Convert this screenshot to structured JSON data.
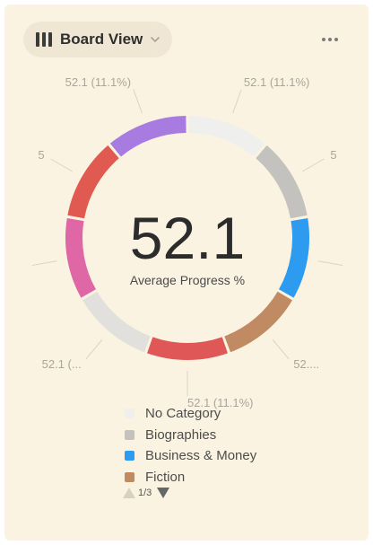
{
  "toolbar": {
    "view_label": "Board View",
    "view_icon": "board-columns-icon",
    "more_icon": "more-horizontal-icon"
  },
  "chart_data": {
    "type": "pie",
    "title": "",
    "center_value": "52.1",
    "center_label": "Average Progress %",
    "slices": [
      {
        "value": 52.1,
        "percent": 11.1,
        "color": "#efefed",
        "label": "52.1 (11.1%)"
      },
      {
        "value": 52.1,
        "percent": 11.1,
        "color": "#c4c2bf",
        "label": "5"
      },
      {
        "value": 52.1,
        "percent": 11.1,
        "color": "#2d9bf0",
        "label": ""
      },
      {
        "value": 52.1,
        "percent": 11.1,
        "color": "#c08a62",
        "label": "52...."
      },
      {
        "value": 52.1,
        "percent": 11.1,
        "color": "#e05757",
        "label": "52.1 (11.1%)"
      },
      {
        "value": 52.1,
        "percent": 11.1,
        "color": "#e2e0dc",
        "label": "52.1 (..."
      },
      {
        "value": 52.1,
        "percent": 11.1,
        "color": "#e067a6",
        "label": ""
      },
      {
        "value": 52.1,
        "percent": 11.1,
        "color": "#e05a52",
        "label": "5"
      },
      {
        "value": 52.1,
        "percent": 11.1,
        "color": "#a77be0",
        "label": "52.1 (11.1%)"
      }
    ],
    "legend": {
      "position": "bottom",
      "items": [
        {
          "name": "No Category",
          "color": "#efefed"
        },
        {
          "name": "Biographies",
          "color": "#c4c2bf"
        },
        {
          "name": "Business & Money",
          "color": "#2d9bf0"
        },
        {
          "name": "Fiction",
          "color": "#c08a62"
        }
      ],
      "page": "1/3"
    }
  }
}
